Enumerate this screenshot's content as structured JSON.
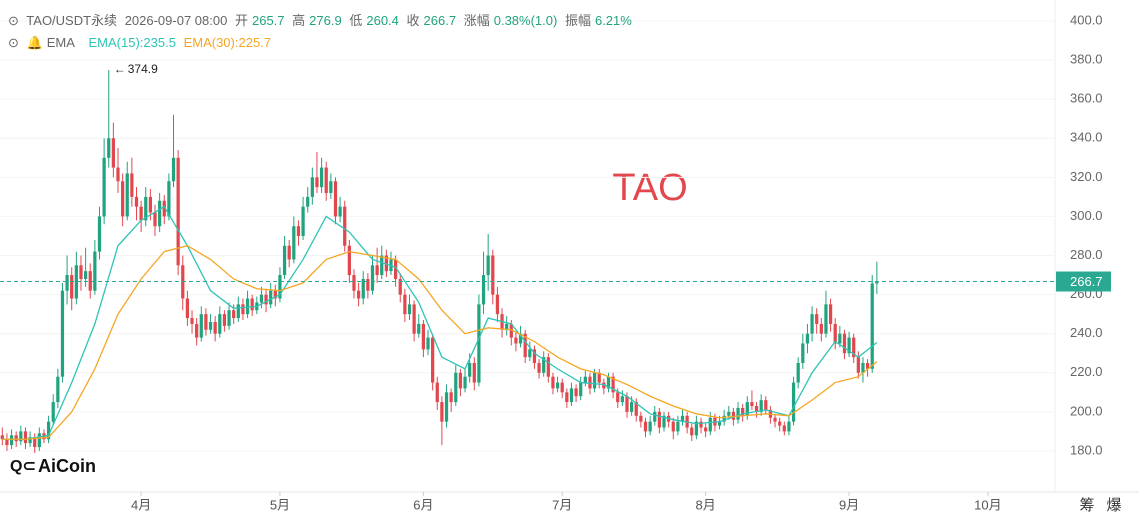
{
  "chart_data": {
    "type": "candlestick",
    "header": {
      "symbol": "TAO/USDT永续",
      "time": "2026-09-07 08:00",
      "open_label": "开",
      "high_label": "高",
      "low_label": "低",
      "close_label": "收",
      "change_label": "涨幅",
      "change": "0.38%(1.0)",
      "amplitude_label": "振幅",
      "amplitude": "6.21%"
    },
    "indicator": "EMA",
    "watermark": "TAO",
    "logo": "AiCoin",
    "toolbar": [
      "筹",
      "爆"
    ],
    "up_color": "#21a37f",
    "down_color": "#e2474e",
    "annotation": {
      "index": 23,
      "arrow": "←"
    },
    "candles": [
      [
        188,
        192,
        183,
        186
      ],
      [
        186,
        189,
        180,
        183
      ],
      [
        183,
        191,
        181,
        188
      ],
      [
        188,
        190,
        182,
        185
      ],
      [
        185,
        193,
        183,
        190
      ],
      [
        190,
        192,
        181,
        184
      ],
      [
        184,
        190,
        182,
        187
      ],
      [
        187,
        189,
        179,
        182
      ],
      [
        182,
        192,
        180,
        189
      ],
      [
        189,
        191,
        184,
        186
      ],
      [
        186,
        198,
        184,
        195
      ],
      [
        195,
        209,
        193,
        205
      ],
      [
        205,
        222,
        202,
        218
      ],
      [
        218,
        266,
        215,
        262
      ],
      [
        262,
        280,
        255,
        270
      ],
      [
        270,
        274,
        252,
        258
      ],
      [
        258,
        282,
        255,
        275
      ],
      [
        275,
        280,
        262,
        268
      ],
      [
        268,
        284,
        264,
        272
      ],
      [
        272,
        276,
        258,
        262
      ],
      [
        262,
        288,
        260,
        282
      ],
      [
        282,
        305,
        278,
        300
      ],
      [
        300,
        340,
        296,
        330
      ],
      [
        330,
        374.9,
        325,
        340
      ],
      [
        340,
        348,
        320,
        325
      ],
      [
        325,
        335,
        312,
        318
      ],
      [
        318,
        322,
        295,
        300
      ],
      [
        300,
        328,
        298,
        322
      ],
      [
        322,
        330,
        305,
        310
      ],
      [
        310,
        315,
        298,
        305
      ],
      [
        305,
        308,
        292,
        298
      ],
      [
        298,
        315,
        295,
        310
      ],
      [
        310,
        314,
        298,
        302
      ],
      [
        302,
        306,
        290,
        295
      ],
      [
        295,
        312,
        292,
        308
      ],
      [
        308,
        311,
        296,
        300
      ],
      [
        300,
        322,
        298,
        318
      ],
      [
        318,
        352,
        315,
        330
      ],
      [
        330,
        334,
        270,
        275
      ],
      [
        275,
        280,
        252,
        258
      ],
      [
        258,
        262,
        244,
        248
      ],
      [
        248,
        252,
        240,
        245
      ],
      [
        245,
        248,
        234,
        238
      ],
      [
        238,
        254,
        236,
        250
      ],
      [
        250,
        253,
        239,
        242
      ],
      [
        242,
        250,
        240,
        246
      ],
      [
        246,
        249,
        236,
        240
      ],
      [
        240,
        254,
        238,
        250
      ],
      [
        250,
        252,
        241,
        244
      ],
      [
        244,
        256,
        242,
        252
      ],
      [
        252,
        255,
        245,
        248
      ],
      [
        248,
        259,
        246,
        255
      ],
      [
        255,
        258,
        247,
        250
      ],
      [
        250,
        262,
        248,
        258
      ],
      [
        258,
        260,
        249,
        252
      ],
      [
        252,
        259,
        250,
        256
      ],
      [
        256,
        264,
        253,
        260
      ],
      [
        260,
        263,
        251,
        255
      ],
      [
        255,
        266,
        253,
        262
      ],
      [
        262,
        265,
        254,
        258
      ],
      [
        258,
        274,
        256,
        270
      ],
      [
        270,
        290,
        268,
        285
      ],
      [
        285,
        288,
        274,
        278
      ],
      [
        278,
        300,
        276,
        295
      ],
      [
        295,
        298,
        285,
        290
      ],
      [
        290,
        310,
        288,
        305
      ],
      [
        305,
        315,
        302,
        310
      ],
      [
        310,
        325,
        306,
        320
      ],
      [
        320,
        333,
        312,
        315
      ],
      [
        315,
        330,
        312,
        325
      ],
      [
        325,
        328,
        308,
        312
      ],
      [
        312,
        322,
        309,
        318
      ],
      [
        318,
        320,
        296,
        300
      ],
      [
        300,
        310,
        297,
        305
      ],
      [
        305,
        308,
        282,
        285
      ],
      [
        285,
        288,
        266,
        270
      ],
      [
        270,
        273,
        258,
        262
      ],
      [
        262,
        266,
        254,
        258
      ],
      [
        258,
        272,
        255,
        268
      ],
      [
        268,
        271,
        258,
        262
      ],
      [
        262,
        280,
        260,
        275
      ],
      [
        275,
        284,
        266,
        270
      ],
      [
        270,
        285,
        268,
        280
      ],
      [
        280,
        283,
        269,
        272
      ],
      [
        272,
        282,
        270,
        278
      ],
      [
        278,
        280,
        264,
        268
      ],
      [
        268,
        271,
        256,
        260
      ],
      [
        260,
        263,
        246,
        250
      ],
      [
        250,
        260,
        247,
        255
      ],
      [
        255,
        257,
        236,
        240
      ],
      [
        240,
        250,
        238,
        245
      ],
      [
        245,
        247,
        228,
        232
      ],
      [
        232,
        242,
        229,
        238
      ],
      [
        238,
        240,
        211,
        215
      ],
      [
        215,
        218,
        201,
        205
      ],
      [
        205,
        208,
        183,
        195
      ],
      [
        195,
        214,
        192,
        210
      ],
      [
        210,
        212,
        200,
        205
      ],
      [
        205,
        224,
        203,
        220
      ],
      [
        220,
        222,
        208,
        212
      ],
      [
        212,
        222,
        210,
        218
      ],
      [
        218,
        230,
        215,
        225
      ],
      [
        225,
        228,
        211,
        215
      ],
      [
        215,
        260,
        213,
        255
      ],
      [
        255,
        282,
        250,
        270
      ],
      [
        270,
        291,
        262,
        280
      ],
      [
        280,
        283,
        255,
        260
      ],
      [
        260,
        264,
        246,
        250
      ],
      [
        250,
        253,
        238,
        242
      ],
      [
        242,
        249,
        239,
        245
      ],
      [
        245,
        247,
        234,
        238
      ],
      [
        238,
        241,
        231,
        235
      ],
      [
        235,
        244,
        233,
        240
      ],
      [
        240,
        242,
        225,
        228
      ],
      [
        228,
        236,
        226,
        232
      ],
      [
        232,
        234,
        222,
        225
      ],
      [
        225,
        227,
        217,
        220
      ],
      [
        220,
        231,
        218,
        228
      ],
      [
        228,
        230,
        215,
        218
      ],
      [
        218,
        220,
        209,
        212
      ],
      [
        212,
        218,
        210,
        215
      ],
      [
        215,
        217,
        207,
        210
      ],
      [
        210,
        212,
        202,
        205
      ],
      [
        205,
        215,
        203,
        212
      ],
      [
        212,
        214,
        205,
        208
      ],
      [
        208,
        218,
        206,
        215
      ],
      [
        215,
        221,
        213,
        218
      ],
      [
        218,
        220,
        209,
        212
      ],
      [
        212,
        222,
        210,
        220
      ],
      [
        220,
        222,
        212,
        215
      ],
      [
        215,
        217,
        209,
        212
      ],
      [
        212,
        220,
        210,
        218
      ],
      [
        218,
        220,
        207,
        210
      ],
      [
        210,
        212,
        202,
        205
      ],
      [
        205,
        211,
        203,
        208
      ],
      [
        208,
        210,
        197,
        200
      ],
      [
        200,
        208,
        198,
        205
      ],
      [
        205,
        207,
        195,
        198
      ],
      [
        198,
        200,
        192,
        195
      ],
      [
        195,
        197,
        187,
        190
      ],
      [
        190,
        198,
        188,
        195
      ],
      [
        195,
        203,
        193,
        200
      ],
      [
        200,
        202,
        189,
        192
      ],
      [
        192,
        200,
        190,
        198
      ],
      [
        198,
        200,
        192,
        195
      ],
      [
        195,
        197,
        186,
        190
      ],
      [
        190,
        198,
        188,
        195
      ],
      [
        195,
        201,
        193,
        198
      ],
      [
        198,
        200,
        189,
        192
      ],
      [
        192,
        194,
        185,
        188
      ],
      [
        188,
        198,
        186,
        195
      ],
      [
        195,
        197,
        189,
        192
      ],
      [
        192,
        194,
        187,
        190
      ],
      [
        190,
        200,
        188,
        197
      ],
      [
        197,
        199,
        190,
        193
      ],
      [
        193,
        198,
        191,
        195
      ],
      [
        195,
        201,
        193,
        198
      ],
      [
        198,
        203,
        196,
        200
      ],
      [
        200,
        202,
        193,
        196
      ],
      [
        196,
        205,
        194,
        202
      ],
      [
        202,
        204,
        195,
        198
      ],
      [
        198,
        208,
        196,
        205
      ],
      [
        205,
        211,
        201,
        203
      ],
      [
        203,
        205,
        197,
        200
      ],
      [
        200,
        209,
        198,
        206
      ],
      [
        206,
        208,
        199,
        201
      ],
      [
        201,
        203,
        194,
        197
      ],
      [
        197,
        199,
        192,
        195
      ],
      [
        195,
        197,
        190,
        193
      ],
      [
        193,
        195,
        188,
        190
      ],
      [
        190,
        198,
        188,
        195
      ],
      [
        195,
        218,
        193,
        215
      ],
      [
        215,
        228,
        212,
        225
      ],
      [
        225,
        240,
        222,
        235
      ],
      [
        235,
        245,
        230,
        240
      ],
      [
        240,
        254,
        236,
        250
      ],
      [
        250,
        253,
        240,
        245
      ],
      [
        245,
        248,
        236,
        240
      ],
      [
        240,
        262,
        238,
        255
      ],
      [
        255,
        258,
        241,
        245
      ],
      [
        245,
        248,
        232,
        235
      ],
      [
        235,
        244,
        233,
        240
      ],
      [
        240,
        242,
        227,
        230
      ],
      [
        230,
        241,
        228,
        238
      ],
      [
        238,
        240,
        225,
        228
      ],
      [
        228,
        231,
        217,
        220
      ],
      [
        220,
        228,
        215,
        225
      ],
      [
        225,
        227,
        218,
        222
      ],
      [
        222,
        270,
        220,
        265.7
      ],
      [
        265.7,
        276.9,
        260.4,
        266.7
      ]
    ],
    "series": [
      {
        "label": "EMA(15):235.5",
        "color": "#2ec4b6",
        "x": [
          0,
          5,
          10,
          15,
          20,
          25,
          30,
          35,
          40,
          45,
          50,
          55,
          60,
          65,
          70,
          75,
          80,
          85,
          90,
          95,
          100,
          105,
          110,
          115,
          120,
          125,
          130,
          135,
          140,
          145,
          150,
          155,
          160,
          165,
          170,
          175,
          180,
          185,
          189
        ],
        "values": [
          186,
          186,
          188,
          215,
          245,
          285,
          298,
          305,
          285,
          262,
          253,
          254,
          260,
          278,
          300,
          292,
          278,
          274,
          256,
          228,
          222,
          248,
          245,
          230,
          222,
          215,
          214,
          208,
          199,
          196,
          194,
          195,
          199,
          201,
          198,
          220,
          236,
          228,
          235.5
        ]
      },
      {
        "label": "EMA(30):225.7",
        "color": "#f5a623",
        "x": [
          0,
          5,
          10,
          15,
          20,
          25,
          30,
          35,
          40,
          45,
          50,
          55,
          60,
          65,
          70,
          75,
          80,
          85,
          90,
          95,
          100,
          105,
          110,
          115,
          120,
          125,
          130,
          135,
          140,
          145,
          150,
          155,
          160,
          165,
          170,
          175,
          180,
          185,
          189
        ],
        "values": [
          186,
          186,
          187,
          200,
          222,
          250,
          268,
          282,
          285,
          278,
          268,
          263,
          262,
          266,
          278,
          282,
          280,
          278,
          268,
          252,
          240,
          243,
          242,
          236,
          228,
          222,
          219,
          214,
          208,
          203,
          199,
          197,
          198,
          199,
          198,
          206,
          215,
          218,
          225.7
        ]
      }
    ],
    "xlim": [
      -0.5,
      227.5
    ],
    "xticks": [
      {
        "value": 30,
        "label": "4月"
      },
      {
        "value": 60,
        "label": "5月"
      },
      {
        "value": 91,
        "label": "6月"
      },
      {
        "value": 121,
        "label": "7月"
      },
      {
        "value": 152,
        "label": "8月"
      },
      {
        "value": 183,
        "label": "9月"
      },
      {
        "value": 213,
        "label": "10月"
      }
    ],
    "ylim": [
      159,
      400
    ],
    "yticks": [
      {
        "value": 180,
        "label": "180.0"
      },
      {
        "value": 200,
        "label": "200.0"
      },
      {
        "value": 220,
        "label": "220.0"
      },
      {
        "value": 240,
        "label": "240.0"
      },
      {
        "value": 260,
        "label": "260.0"
      },
      {
        "value": 280,
        "label": "280.0"
      },
      {
        "value": 300,
        "label": "300.0"
      },
      {
        "value": 320,
        "label": "320.0"
      },
      {
        "value": 340,
        "label": "340.0"
      },
      {
        "value": 360,
        "label": "360.0"
      },
      {
        "value": 380,
        "label": "380.0"
      },
      {
        "value": 400,
        "label": "400.0"
      }
    ],
    "grid": true
  }
}
